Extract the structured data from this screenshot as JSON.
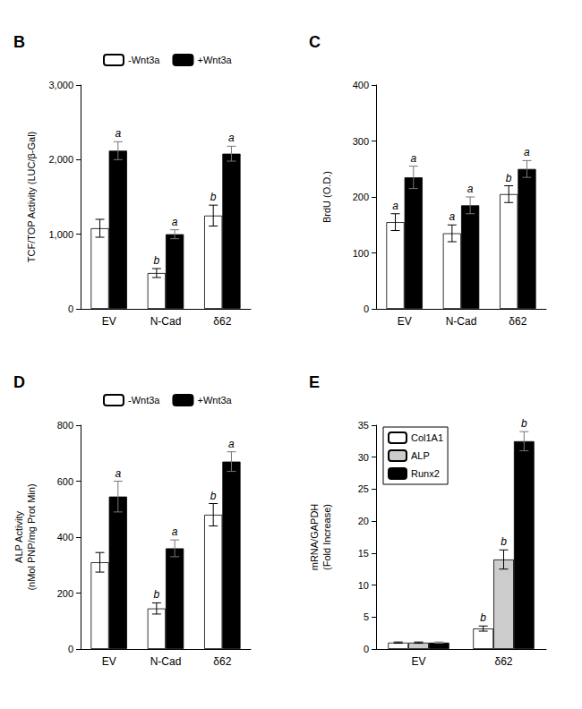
{
  "chart_data": [
    {
      "type": "bar",
      "title": "B",
      "categories": [
        "EV",
        "N-Cad",
        "δ62"
      ],
      "series": [
        {
          "name": "-Wnt3a",
          "color": "#ffffff",
          "values": [
            1080,
            480,
            1250
          ],
          "errors": [
            120,
            60,
            140
          ],
          "annotations": [
            null,
            "b",
            "b"
          ]
        },
        {
          "name": "+Wnt3a",
          "color": "#000000",
          "values": [
            2120,
            1000,
            2080
          ],
          "errors": [
            120,
            60,
            100
          ],
          "annotations": [
            "a",
            "a",
            "a"
          ]
        }
      ],
      "ylabel": "TCF/TOP Activity (LUC/β-Gal)",
      "ylim": [
        0,
        3000
      ],
      "yticks": [
        0,
        1000,
        2000,
        3000
      ],
      "grid": false,
      "legend": "top"
    },
    {
      "type": "bar",
      "title": "C",
      "categories": [
        "EV",
        "N-Cad",
        "δ62"
      ],
      "series": [
        {
          "name": "-Wnt3a",
          "color": "#ffffff",
          "values": [
            155,
            135,
            205
          ],
          "errors": [
            15,
            15,
            15
          ],
          "annotations": [
            "a",
            "a",
            "b"
          ]
        },
        {
          "name": "+Wnt3a",
          "color": "#000000",
          "values": [
            235,
            185,
            250
          ],
          "errors": [
            20,
            15,
            15
          ],
          "annotations": [
            "a",
            "a",
            "a"
          ]
        }
      ],
      "ylabel": "BrdU (O.D.)",
      "ylim": [
        0,
        400
      ],
      "yticks": [
        0,
        100,
        200,
        300,
        400
      ],
      "grid": false,
      "legend": false
    },
    {
      "type": "bar",
      "title": "D",
      "categories": [
        "EV",
        "N-Cad",
        "δ62"
      ],
      "series": [
        {
          "name": "-Wnt3a",
          "color": "#ffffff",
          "values": [
            310,
            145,
            480
          ],
          "errors": [
            35,
            20,
            40
          ],
          "annotations": [
            null,
            "b",
            "b"
          ]
        },
        {
          "name": "+Wnt3a",
          "color": "#000000",
          "values": [
            545,
            360,
            670
          ],
          "errors": [
            55,
            30,
            35
          ],
          "annotations": [
            "a",
            "a",
            "a"
          ]
        }
      ],
      "ylabel": "ALP Activity\n(nMol PNP/mg Prot Min)",
      "ylim": [
        0,
        800
      ],
      "yticks": [
        0,
        200,
        400,
        600,
        800
      ],
      "grid": false,
      "legend": "top"
    },
    {
      "type": "bar",
      "title": "E",
      "categories": [
        "EV",
        "δ62"
      ],
      "series": [
        {
          "name": "Col1A1",
          "color": "#ffffff",
          "values": [
            1.0,
            3.2
          ],
          "errors": [
            0.1,
            0.4
          ],
          "annotations": [
            null,
            "b"
          ]
        },
        {
          "name": "ALP",
          "color": "#cccccc",
          "values": [
            1.0,
            14.0
          ],
          "errors": [
            0.1,
            1.5
          ],
          "annotations": [
            null,
            "b"
          ]
        },
        {
          "name": "Runx2",
          "color": "#000000",
          "values": [
            1.0,
            32.5
          ],
          "errors": [
            0.1,
            1.5
          ],
          "annotations": [
            null,
            "b"
          ]
        }
      ],
      "ylabel": "mRNA/GAPDH\n(Fold Increase)",
      "ylim": [
        0,
        35
      ],
      "yticks": [
        0,
        5,
        10,
        15,
        20,
        25,
        30,
        35
      ],
      "grid": false,
      "legend": "top left"
    }
  ]
}
